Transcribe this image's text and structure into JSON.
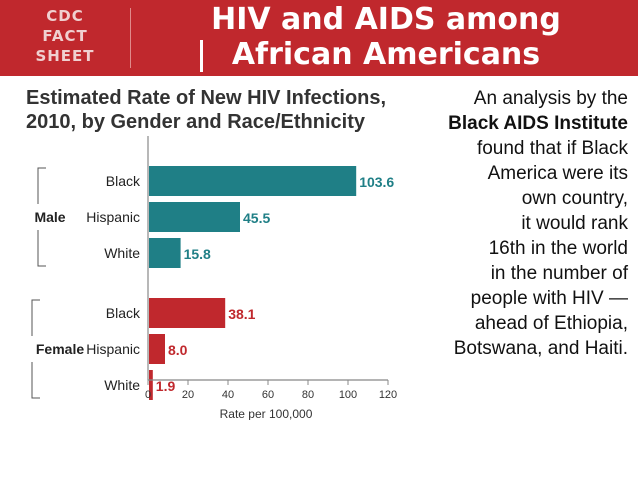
{
  "header": {
    "badge_lines": [
      "CDC",
      "FACT",
      "SHEET"
    ],
    "title_line1": "HIV and AIDS among",
    "title_line2": "African Americans"
  },
  "colors": {
    "banner": "#c0282d",
    "male_bar": "#1f7f86",
    "female_bar": "#c0282d",
    "axis": "#888888"
  },
  "chart_data": {
    "type": "bar",
    "orientation": "horizontal",
    "title": [
      "Estimated Rate of New HIV Infections,",
      "2010, by Gender and Race/Ethnicity"
    ],
    "xlabel": "Rate per 100,000",
    "xlim": [
      0,
      120
    ],
    "xticks": [
      0,
      20,
      40,
      60,
      80,
      100,
      120
    ],
    "groups": [
      {
        "name": "Male",
        "color": "#1f7f86",
        "categories": [
          "Black",
          "Hispanic",
          "White"
        ],
        "values": [
          103.6,
          45.5,
          15.8
        ],
        "labels": [
          "103.6",
          "45.5",
          "15.8"
        ]
      },
      {
        "name": "Female",
        "color": "#c0282d",
        "categories": [
          "Black",
          "Hispanic",
          "White"
        ],
        "values": [
          38.1,
          8.0,
          1.9
        ],
        "labels": [
          "38.1",
          "8.0",
          "1.9"
        ]
      }
    ]
  },
  "side_text": {
    "lines": [
      {
        "text": "An analysis by the",
        "bold": false
      },
      {
        "text": "Black AIDS Institute",
        "bold": true
      },
      {
        "text": "found that if Black",
        "bold": false
      },
      {
        "text": "America were its",
        "bold": false
      },
      {
        "text": "own country,",
        "bold": false
      },
      {
        "text": "it would rank",
        "bold": false
      },
      {
        "text": "16th in the world",
        "bold": false
      },
      {
        "text": "in the number of",
        "bold": false
      },
      {
        "text": "people with HIV —",
        "bold": false
      },
      {
        "text": "ahead of Ethiopia,",
        "bold": false
      },
      {
        "text": "Botswana, and Haiti.",
        "bold": false
      }
    ]
  }
}
